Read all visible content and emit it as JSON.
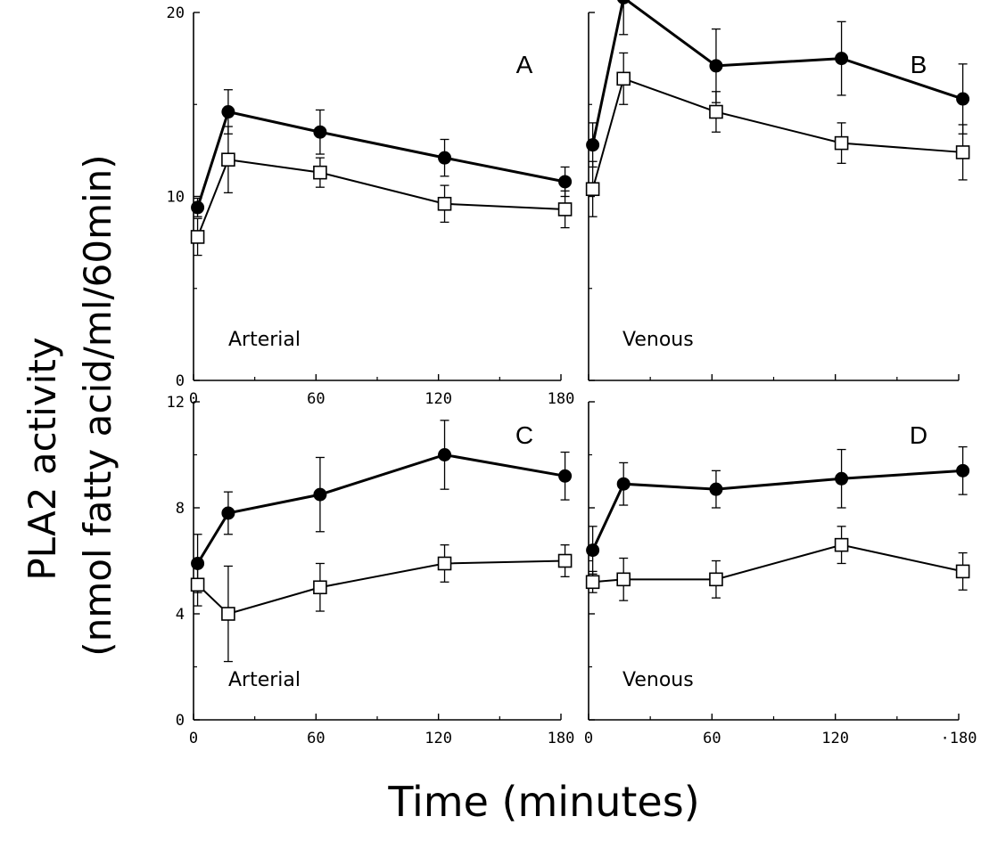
{
  "chart_data": [
    {
      "type": "line",
      "panel": "A",
      "label": "Arterial",
      "x": [
        2,
        17,
        62,
        123,
        182
      ],
      "xlim": [
        0,
        180
      ],
      "ylim": [
        0,
        20
      ],
      "x_ticks": [
        "0",
        "60",
        "120",
        "180"
      ],
      "y_ticks": [
        "0",
        "10",
        "20"
      ],
      "series": [
        {
          "marker": "filled-circle",
          "values": [
            9.4,
            14.6,
            13.5,
            12.1,
            10.8
          ],
          "errors": [
            0.5,
            1.2,
            1.2,
            1.0,
            0.8
          ]
        },
        {
          "marker": "open-square",
          "values": [
            7.8,
            12.0,
            11.3,
            9.6,
            9.3
          ],
          "errors": [
            1.0,
            1.8,
            0.8,
            1.0,
            1.0
          ]
        }
      ]
    },
    {
      "type": "line",
      "panel": "B",
      "label": "Venous",
      "x": [
        2,
        17,
        62,
        123,
        182
      ],
      "xlim": [
        0,
        180
      ],
      "ylim": [
        0,
        20
      ],
      "x_ticks": [],
      "y_ticks": [],
      "series": [
        {
          "marker": "filled-circle",
          "values": [
            12.8,
            20.8,
            17.1,
            17.5,
            15.3
          ],
          "errors": [
            1.2,
            2.0,
            2.0,
            2.0,
            1.9
          ]
        },
        {
          "marker": "open-square",
          "values": [
            10.4,
            16.4,
            14.6,
            12.9,
            12.4
          ],
          "errors": [
            1.5,
            1.4,
            1.1,
            1.1,
            1.5
          ]
        }
      ]
    },
    {
      "type": "line",
      "panel": "C",
      "label": "Arterial",
      "x": [
        2,
        17,
        62,
        123,
        182
      ],
      "xlim": [
        0,
        180
      ],
      "ylim": [
        0,
        12
      ],
      "x_ticks": [
        "0",
        "60",
        "120",
        "180"
      ],
      "y_ticks": [
        "0",
        "4",
        "8",
        "12"
      ],
      "series": [
        {
          "marker": "filled-circle",
          "values": [
            5.9,
            7.8,
            8.5,
            10.0,
            9.2
          ],
          "errors": [
            1.1,
            0.8,
            1.4,
            1.3,
            0.9
          ]
        },
        {
          "marker": "open-square",
          "values": [
            5.1,
            4.0,
            5.0,
            5.9,
            6.0
          ],
          "errors": [
            0.8,
            1.8,
            0.9,
            0.7,
            0.6
          ]
        }
      ]
    },
    {
      "type": "line",
      "panel": "D",
      "label": "Venous",
      "x": [
        2,
        17,
        62,
        123,
        182
      ],
      "xlim": [
        0,
        180
      ],
      "ylim": [
        0,
        12
      ],
      "x_ticks": [
        "0",
        "60",
        "120",
        "·180"
      ],
      "y_ticks": [],
      "series": [
        {
          "marker": "filled-circle",
          "values": [
            6.4,
            8.9,
            8.7,
            9.1,
            9.4
          ],
          "errors": [
            0.9,
            0.8,
            0.7,
            1.1,
            0.9
          ]
        },
        {
          "marker": "open-square",
          "values": [
            5.2,
            5.3,
            5.3,
            6.6,
            5.6
          ],
          "errors": [
            0.4,
            0.8,
            0.7,
            0.7,
            0.7
          ]
        }
      ]
    }
  ],
  "axis_labels": {
    "y_line1": "PLA2 activity",
    "y_line2": "(nmol fatty acid/ml/60min)",
    "x": "Time (minutes)"
  },
  "colors": {
    "line": "#000000",
    "filled_marker": "#000000",
    "open_marker_fill": "#ffffff"
  }
}
